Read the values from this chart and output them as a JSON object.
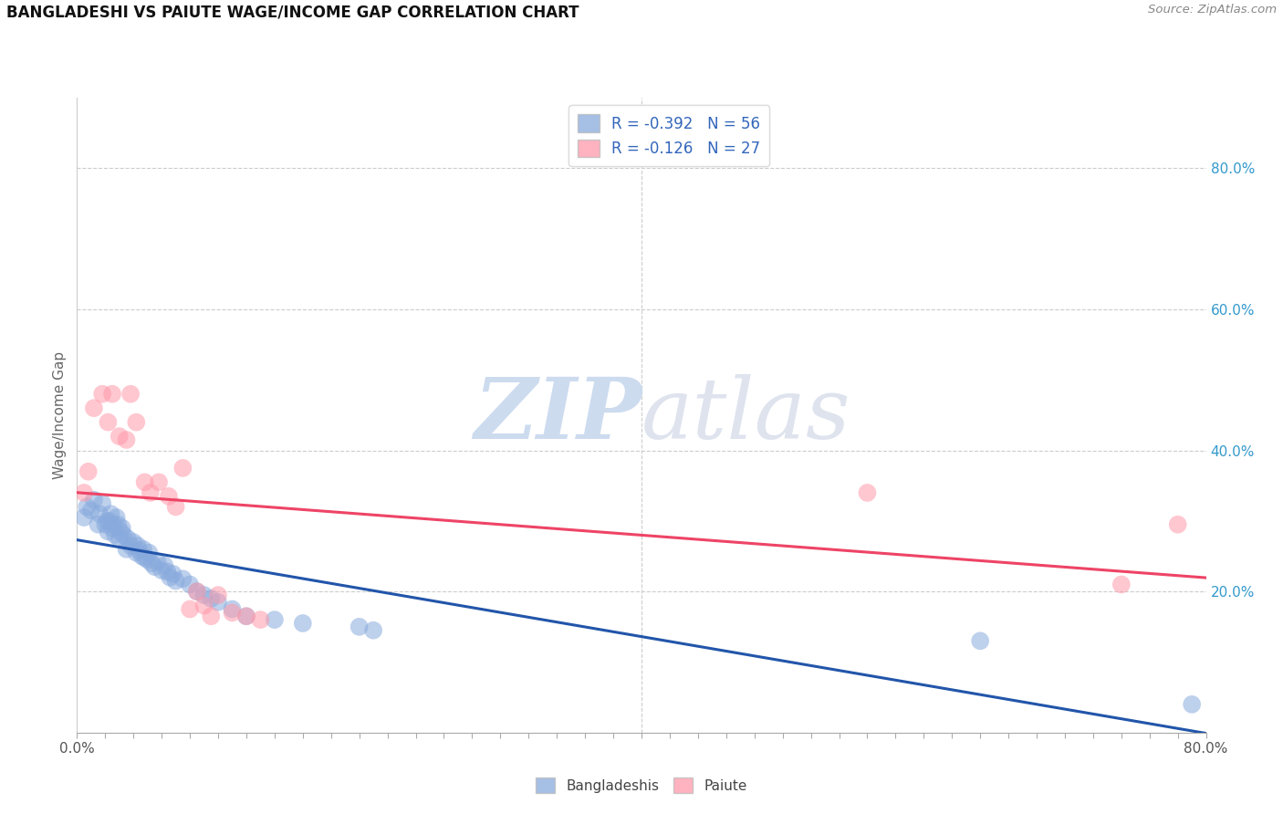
{
  "title": "BANGLADESHI VS PAIUTE WAGE/INCOME GAP CORRELATION CHART",
  "source": "Source: ZipAtlas.com",
  "ylabel": "Wage/Income Gap",
  "watermark_zip": "ZIP",
  "watermark_atlas": "atlas",
  "legend_r_bangladeshi": "-0.392",
  "legend_n_bangladeshi": "56",
  "legend_r_paiute": "-0.126",
  "legend_n_paiute": "27",
  "xlim": [
    0.0,
    0.8
  ],
  "ylim": [
    0.0,
    0.9
  ],
  "yticks_right": [
    0.2,
    0.4,
    0.6,
    0.8
  ],
  "ytick_labels_right": [
    "20.0%",
    "40.0%",
    "60.0%",
    "80.0%"
  ],
  "color_bangladeshi": "#88AADD",
  "color_paiute": "#FF99AA",
  "trendline_bangladeshi_color": "#2255AA",
  "trendline_paiute_color": "#EE4466",
  "background_color": "#FFFFFF",
  "bangladeshi_x": [
    0.005,
    0.007,
    0.01,
    0.012,
    0.015,
    0.016,
    0.018,
    0.02,
    0.021,
    0.022,
    0.023,
    0.024,
    0.025,
    0.026,
    0.027,
    0.028,
    0.029,
    0.03,
    0.031,
    0.032,
    0.033,
    0.035,
    0.036,
    0.038,
    0.04,
    0.042,
    0.043,
    0.044,
    0.046,
    0.047,
    0.048,
    0.05,
    0.051,
    0.053,
    0.055,
    0.057,
    0.06,
    0.062,
    0.064,
    0.066,
    0.068,
    0.07,
    0.075,
    0.08,
    0.085,
    0.09,
    0.095,
    0.1,
    0.11,
    0.12,
    0.14,
    0.16,
    0.2,
    0.21,
    0.64,
    0.79
  ],
  "bangladeshi_y": [
    0.305,
    0.32,
    0.315,
    0.33,
    0.295,
    0.31,
    0.325,
    0.295,
    0.3,
    0.285,
    0.3,
    0.31,
    0.29,
    0.295,
    0.28,
    0.305,
    0.295,
    0.275,
    0.285,
    0.29,
    0.28,
    0.26,
    0.275,
    0.265,
    0.27,
    0.255,
    0.265,
    0.258,
    0.25,
    0.26,
    0.248,
    0.245,
    0.255,
    0.24,
    0.235,
    0.242,
    0.23,
    0.237,
    0.228,
    0.22,
    0.225,
    0.215,
    0.218,
    0.21,
    0.2,
    0.195,
    0.19,
    0.185,
    0.175,
    0.165,
    0.16,
    0.155,
    0.15,
    0.145,
    0.13,
    0.04
  ],
  "paiute_x": [
    0.005,
    0.008,
    0.012,
    0.018,
    0.022,
    0.025,
    0.03,
    0.035,
    0.038,
    0.042,
    0.048,
    0.052,
    0.058,
    0.065,
    0.07,
    0.075,
    0.08,
    0.085,
    0.09,
    0.095,
    0.1,
    0.11,
    0.12,
    0.13,
    0.56,
    0.74,
    0.78
  ],
  "paiute_y": [
    0.34,
    0.37,
    0.46,
    0.48,
    0.44,
    0.48,
    0.42,
    0.415,
    0.48,
    0.44,
    0.355,
    0.34,
    0.355,
    0.335,
    0.32,
    0.375,
    0.175,
    0.2,
    0.18,
    0.165,
    0.195,
    0.17,
    0.165,
    0.16,
    0.34,
    0.21,
    0.295
  ]
}
